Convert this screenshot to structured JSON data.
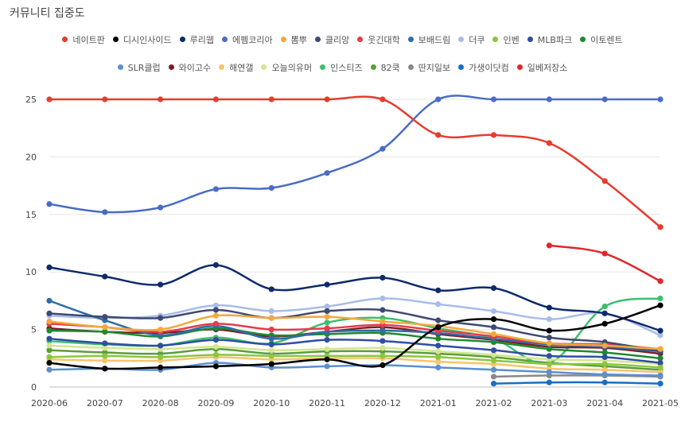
{
  "title": "커뮤니티 집중도",
  "chart_data": {
    "type": "line",
    "x": [
      "2020-06",
      "2020-07",
      "2020-08",
      "2020-09",
      "2020-10",
      "2020-11",
      "2020-12",
      "2021-01",
      "2021-02",
      "2021-03",
      "2021-04",
      "2021-05"
    ],
    "y_ticks": [
      0,
      5,
      10,
      15,
      20,
      25
    ],
    "ylim": [
      0,
      25
    ],
    "grid": true,
    "legend_position": "top",
    "series": [
      {
        "name": "네이트판",
        "color": "#e63b2e",
        "values": [
          25,
          25,
          25,
          25,
          25,
          25,
          25,
          21.9,
          21.9,
          21.2,
          17.9,
          13.9
        ]
      },
      {
        "name": "디시인사이드",
        "color": "#000000",
        "values": [
          2.1,
          1.6,
          1.7,
          1.8,
          2.0,
          2.4,
          1.9,
          5.2,
          5.9,
          4.9,
          5.5,
          7.1
        ]
      },
      {
        "name": "루리웹",
        "color": "#0d2a6b",
        "values": [
          10.4,
          9.6,
          8.9,
          10.6,
          8.5,
          8.9,
          9.5,
          8.4,
          8.6,
          6.9,
          6.4,
          4.9
        ]
      },
      {
        "name": "에펨코리아",
        "color": "#4a6cc4",
        "values": [
          15.9,
          15.2,
          15.6,
          17.2,
          17.3,
          18.6,
          20.7,
          25,
          25,
          25,
          25,
          25
        ]
      },
      {
        "name": "뽐뿌",
        "color": "#f2a93b",
        "values": [
          5.7,
          5.2,
          5.0,
          6.2,
          6.0,
          6.1,
          5.7,
          5.3,
          4.6,
          3.8,
          3.6,
          3.3
        ]
      },
      {
        "name": "클리앙",
        "color": "#3f4a73",
        "values": [
          6.4,
          6.1,
          6.0,
          6.7,
          6.0,
          6.6,
          6.7,
          5.8,
          5.2,
          4.3,
          3.9,
          3.1
        ]
      },
      {
        "name": "웃긴대학",
        "color": "#e63b4d",
        "values": [
          5.5,
          5.2,
          4.8,
          5.5,
          5.0,
          5.1,
          5.4,
          4.9,
          4.4,
          3.8,
          3.7,
          3.3
        ]
      },
      {
        "name": "보배드림",
        "color": "#2e6da8",
        "values": [
          7.5,
          5.8,
          4.5,
          5.3,
          4.2,
          4.8,
          4.9,
          4.7,
          4.2,
          3.7,
          3.5,
          3.1
        ]
      },
      {
        "name": "더쿠",
        "color": "#a8bcea",
        "values": [
          6.2,
          6.0,
          6.2,
          7.1,
          6.6,
          7.0,
          7.7,
          7.2,
          6.6,
          5.9,
          6.4,
          4.5
        ]
      },
      {
        "name": "인벤",
        "color": "#8cc63f",
        "values": [
          2.6,
          2.7,
          2.6,
          2.8,
          2.7,
          2.7,
          2.7,
          2.6,
          2.3,
          2.0,
          2.0,
          1.7
        ]
      },
      {
        "name": "MLB파크",
        "color": "#2f4ea3",
        "values": [
          4.2,
          3.8,
          3.6,
          4.1,
          3.7,
          4.1,
          4.0,
          3.6,
          3.2,
          2.7,
          2.6,
          2.1
        ]
      },
      {
        "name": "이토렌트",
        "color": "#1e8a2e",
        "values": [
          4.9,
          4.8,
          4.4,
          5.1,
          4.5,
          4.6,
          4.7,
          4.2,
          3.9,
          3.3,
          3.0,
          2.5
        ]
      },
      {
        "name": "SLR클럽",
        "color": "#5b8fd0",
        "values": [
          1.5,
          1.6,
          1.5,
          2.1,
          1.7,
          1.8,
          1.9,
          1.7,
          1.5,
          1.3,
          1.1,
          1.0
        ]
      },
      {
        "name": "와이고수",
        "color": "#7a1f28",
        "values": [
          5.1,
          4.8,
          4.7,
          5.0,
          4.4,
          4.8,
          5.2,
          4.6,
          4.1,
          3.5,
          3.4,
          2.9
        ]
      },
      {
        "name": "해연갤",
        "color": "#f7c46c",
        "values": [
          2.4,
          2.3,
          2.3,
          2.6,
          2.4,
          2.5,
          2.5,
          2.2,
          2.0,
          1.6,
          1.5,
          1.3
        ]
      },
      {
        "name": "오늘의유머",
        "color": "#d4e68f",
        "values": [
          3.6,
          3.4,
          3.3,
          3.5,
          3.2,
          3.3,
          3.4,
          3.1,
          2.8,
          2.4,
          2.3,
          2.0
        ]
      },
      {
        "name": "인스티즈",
        "color": "#3cbf6e",
        "values": [
          4.0,
          3.7,
          3.6,
          4.3,
          3.8,
          5.6,
          6.0,
          5.1,
          4.2,
          2.1,
          7.0,
          7.7
        ]
      },
      {
        "name": "82쿡",
        "color": "#5b9e3c",
        "values": [
          3.2,
          3.0,
          2.9,
          3.3,
          2.9,
          3.1,
          3.1,
          2.9,
          2.6,
          2.1,
          1.8,
          1.5
        ]
      },
      {
        "name": "딴지일보",
        "color": "#888888",
        "values": [
          null,
          null,
          null,
          null,
          null,
          null,
          null,
          null,
          0.9,
          1.0,
          1.0,
          0.9
        ]
      },
      {
        "name": "가생이닷컴",
        "color": "#1a6fc4",
        "values": [
          null,
          null,
          null,
          null,
          null,
          null,
          null,
          null,
          0.3,
          0.4,
          0.4,
          0.3
        ]
      },
      {
        "name": "일베저장소",
        "color": "#e0262b",
        "values": [
          null,
          null,
          null,
          null,
          null,
          null,
          null,
          null,
          null,
          12.3,
          11.6,
          9.2
        ]
      }
    ]
  }
}
